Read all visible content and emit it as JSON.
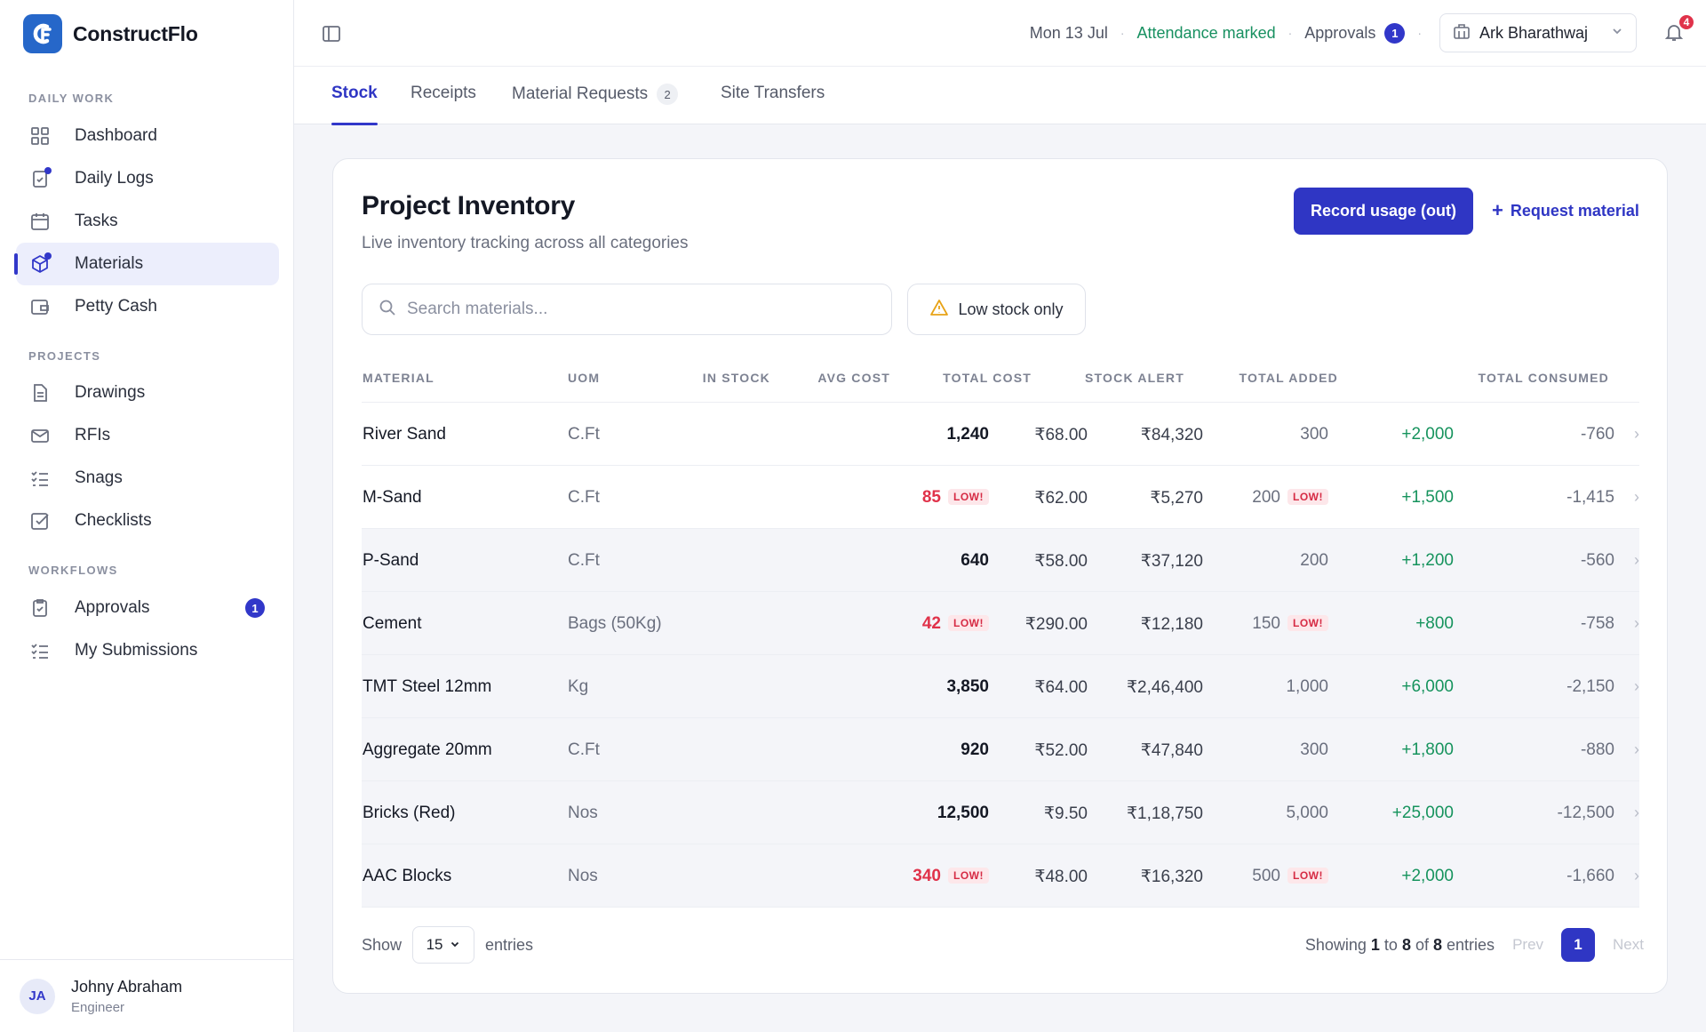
{
  "brand": {
    "name": "ConstructFlo",
    "logo_text": "CF"
  },
  "sidebar": {
    "sections": [
      {
        "label": "DAILY WORK"
      },
      {
        "label": "PROJECTS"
      },
      {
        "label": "WORKFLOWS"
      }
    ],
    "items": [
      {
        "label": "Dashboard",
        "icon": "grid-icon"
      },
      {
        "label": "Daily Logs",
        "icon": "clipboard-check-icon"
      },
      {
        "label": "Tasks",
        "icon": "calendar-icon"
      },
      {
        "label": "Materials",
        "icon": "cube-icon",
        "active": true
      },
      {
        "label": "Petty Cash",
        "icon": "wallet-icon"
      },
      {
        "label": "Drawings",
        "icon": "document-icon"
      },
      {
        "label": "RFIs",
        "icon": "mail-icon"
      },
      {
        "label": "Snags",
        "icon": "list-check-icon"
      },
      {
        "label": "Checklists",
        "icon": "checkbox-icon"
      },
      {
        "label": "Approvals",
        "icon": "clipboard-check-icon",
        "badge": "1"
      },
      {
        "label": "My Submissions",
        "icon": "list-check-icon"
      }
    ],
    "user": {
      "initials": "JA",
      "name": "Johny Abraham",
      "role": "Engineer"
    }
  },
  "topbar": {
    "date": "Mon 13 Jul",
    "attendance": "Attendance marked",
    "approvals_label": "Approvals",
    "approvals_count": "1",
    "separator": "·",
    "user_name": "Ark Bharathwaj",
    "notifications_count": "4"
  },
  "tabs": [
    {
      "label": "Stock",
      "active": true
    },
    {
      "label": "Receipts"
    },
    {
      "label": "Material Requests",
      "count": "2"
    },
    {
      "label": "Site Transfers"
    }
  ],
  "inventory": {
    "title": "Project Inventory",
    "subtitle": "Live inventory tracking across all categories",
    "primary_action": "Record usage (out)",
    "secondary_action": "Request material",
    "search_placeholder": "Search materials...",
    "filter_label": "Low stock only",
    "low_label": "LOW!",
    "columns": [
      "MATERIAL",
      "UOM",
      "IN STOCK",
      "AVG COST",
      "TOTAL COST",
      "STOCK ALERT",
      "TOTAL ADDED",
      "TOTAL CONSUMED"
    ],
    "rows": [
      {
        "material": "River Sand",
        "uom": "C.Ft",
        "in_stock": "1,240",
        "low": false,
        "avg_cost": "₹68.00",
        "total_cost": "₹84,320",
        "alert": "300",
        "alert_low": false,
        "added": "+2,000",
        "consumed": "-760"
      },
      {
        "material": "M-Sand",
        "uom": "C.Ft",
        "in_stock": "85",
        "low": true,
        "avg_cost": "₹62.00",
        "total_cost": "₹5,270",
        "alert": "200",
        "alert_low": true,
        "added": "+1,500",
        "consumed": "-1,415"
      },
      {
        "material": "P-Sand",
        "uom": "C.Ft",
        "in_stock": "640",
        "low": false,
        "avg_cost": "₹58.00",
        "total_cost": "₹37,120",
        "alert": "200",
        "alert_low": false,
        "added": "+1,200",
        "consumed": "-560"
      },
      {
        "material": "Cement",
        "uom": "Bags (50Kg)",
        "in_stock": "42",
        "low": true,
        "avg_cost": "₹290.00",
        "total_cost": "₹12,180",
        "alert": "150",
        "alert_low": true,
        "added": "+800",
        "consumed": "-758"
      },
      {
        "material": "TMT Steel 12mm",
        "uom": "Kg",
        "in_stock": "3,850",
        "low": false,
        "avg_cost": "₹64.00",
        "total_cost": "₹2,46,400",
        "alert": "1,000",
        "alert_low": false,
        "added": "+6,000",
        "consumed": "-2,150"
      },
      {
        "material": "Aggregate 20mm",
        "uom": "C.Ft",
        "in_stock": "920",
        "low": false,
        "avg_cost": "₹52.00",
        "total_cost": "₹47,840",
        "alert": "300",
        "alert_low": false,
        "added": "+1,800",
        "consumed": "-880"
      },
      {
        "material": "Bricks (Red)",
        "uom": "Nos",
        "in_stock": "12,500",
        "low": false,
        "avg_cost": "₹9.50",
        "total_cost": "₹1,18,750",
        "alert": "5,000",
        "alert_low": false,
        "added": "+25,000",
        "consumed": "-12,500"
      },
      {
        "material": "AAC Blocks",
        "uom": "Nos",
        "in_stock": "340",
        "low": true,
        "avg_cost": "₹48.00",
        "total_cost": "₹16,320",
        "alert": "500",
        "alert_low": true,
        "added": "+2,000",
        "consumed": "-1,660"
      }
    ],
    "footer": {
      "show": "Show",
      "page_size": "15",
      "entries": "entries",
      "showing": "Showing",
      "from": "1",
      "to_word": "to",
      "to": "8",
      "of_word": "of",
      "total": "8",
      "entries_word": "entries",
      "prev": "Prev",
      "page": "1",
      "next": "Next"
    }
  },
  "colors": {
    "accent": "#2f36c4",
    "logo": "#2667c9",
    "success": "#16935d",
    "danger": "#e0324a"
  }
}
